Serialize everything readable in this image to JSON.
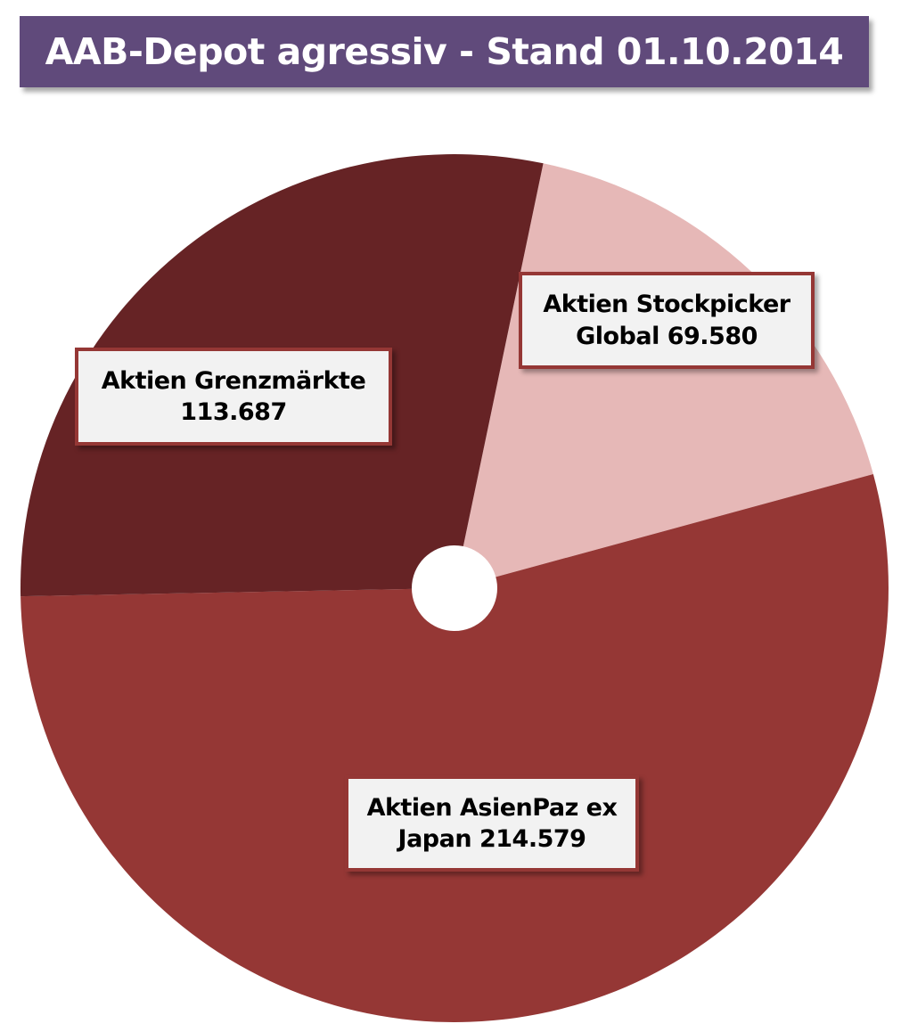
{
  "chart_data": {
    "type": "pie",
    "title": "AAB-Depot agressiv - Stand 01.10.2014",
    "categories": [
      "Aktien Stockpicker Global",
      "Aktien AsienPaz ex Japan",
      "Aktien Grenzmärkte"
    ],
    "values": [
      69580,
      214579,
      113687
    ],
    "colors": [
      "#E6B8B7",
      "#953735",
      "#662325"
    ],
    "data_labels": [
      {
        "line1": "Aktien Stockpicker",
        "line2": "Global 69.580"
      },
      {
        "line1": "Aktien AsienPaz ex",
        "line2": "Japan 214.579"
      },
      {
        "line1": "Aktien Grenzmärkte",
        "line2": "113.687"
      }
    ],
    "start_angle_deg": 11.8,
    "direction": "clockwise",
    "center_hole": true,
    "legend": "none"
  }
}
